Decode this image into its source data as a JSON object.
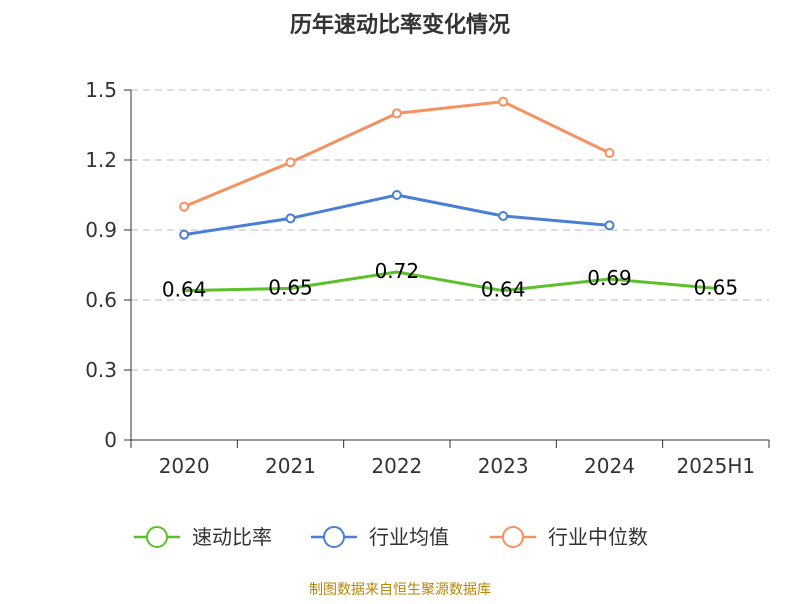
{
  "chart_data": {
    "type": "line",
    "title": "历年速动比率变化情况",
    "categories": [
      "2020",
      "2021",
      "2022",
      "2023",
      "2024",
      "2025H1"
    ],
    "yticks": [
      "0",
      "0.3",
      "0.6",
      "0.9",
      "1.2",
      "1.5"
    ],
    "ylim": [
      0,
      1.5
    ],
    "grid": true,
    "legend_position": "bottom",
    "series": [
      {
        "name": "速动比率",
        "color": "#5cc02a",
        "values": [
          0.64,
          0.65,
          0.72,
          0.64,
          0.69,
          0.65
        ],
        "labels": [
          "0.64",
          "0.65",
          "0.72",
          "0.64",
          "0.69",
          "0.65"
        ],
        "show_markers": false,
        "show_labels": true
      },
      {
        "name": "行业均值",
        "color": "#4a7fd6",
        "values": [
          0.88,
          0.95,
          1.05,
          0.96,
          0.92,
          null
        ],
        "show_markers": true,
        "show_labels": false
      },
      {
        "name": "行业中位数",
        "color": "#f59262",
        "values": [
          1.0,
          1.19,
          1.4,
          1.45,
          1.23,
          null
        ],
        "show_markers": true,
        "show_labels": false
      }
    ],
    "source": "制图数据来自恒生聚源数据库"
  }
}
